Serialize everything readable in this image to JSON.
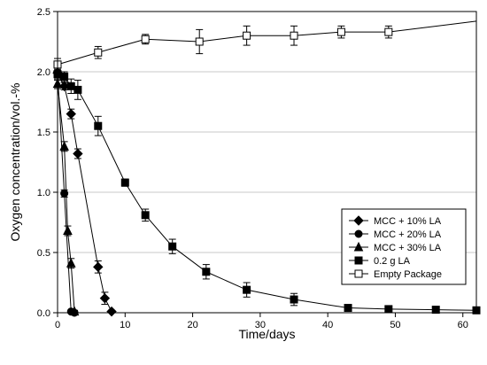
{
  "chart_data": {
    "type": "line",
    "title": "",
    "xlabel": "Time/days",
    "ylabel": "Oxygen concentration/vol.-%",
    "xlim": [
      0,
      62
    ],
    "ylim": [
      0,
      2.5
    ],
    "xticks": [
      0,
      10,
      20,
      30,
      40,
      50,
      60
    ],
    "yticks": [
      0.0,
      0.5,
      1.0,
      1.5,
      2.0,
      2.5
    ],
    "ytick_labels": [
      "0.0",
      "0.5",
      "1.0",
      "1.5",
      "2.0",
      "2.5"
    ],
    "grid": "horizontal",
    "legend_position": "bottom-right",
    "series": [
      {
        "name": "MCC + 10% LA",
        "marker": "diamond-filled",
        "x": [
          0,
          1,
          2,
          3,
          6,
          7,
          8
        ],
        "y": [
          1.99,
          1.88,
          1.65,
          1.32,
          0.38,
          0.12,
          0.01
        ],
        "err": [
          0.04,
          0.03,
          0.04,
          0.04,
          0.05,
          0.05,
          0.01
        ]
      },
      {
        "name": "MCC + 20% LA",
        "marker": "circle-filled",
        "x": [
          0,
          1,
          2,
          2.5
        ],
        "y": [
          1.99,
          0.99,
          0.01,
          0.0
        ],
        "err": [
          0.03,
          0.03,
          0.01,
          0.01
        ]
      },
      {
        "name": "MCC + 30% LA",
        "marker": "triangle-filled",
        "x": [
          0,
          1,
          1.5,
          2,
          2.5
        ],
        "y": [
          1.9,
          1.38,
          0.68,
          0.41,
          0.01
        ],
        "err": [
          0.04,
          0.04,
          0.04,
          0.04,
          0.01
        ]
      },
      {
        "name": "0.2 g LA",
        "marker": "square-filled",
        "x": [
          0,
          1,
          2,
          3,
          6,
          10,
          13,
          17,
          22,
          28,
          35,
          43,
          49,
          56,
          62
        ],
        "y": [
          1.98,
          1.96,
          1.88,
          1.85,
          1.55,
          1.08,
          0.81,
          0.55,
          0.34,
          0.19,
          0.11,
          0.04,
          0.03,
          0.025,
          0.02
        ],
        "err": [
          0.05,
          0.04,
          0.06,
          0.08,
          0.08,
          0.03,
          0.05,
          0.06,
          0.06,
          0.06,
          0.05,
          0.02,
          0.02,
          0.015,
          0.015
        ]
      },
      {
        "name": "Empty Package",
        "marker": "square-open",
        "x": [
          0,
          6,
          13,
          21,
          28,
          35,
          42,
          49,
          62
        ],
        "y": [
          2.06,
          2.16,
          2.27,
          2.25,
          2.3,
          2.3,
          2.33,
          2.33,
          2.42
        ],
        "err": [
          0.05,
          0.05,
          0.04,
          0.1,
          0.08,
          0.08,
          0.05,
          0.05,
          0
        ]
      }
    ]
  }
}
